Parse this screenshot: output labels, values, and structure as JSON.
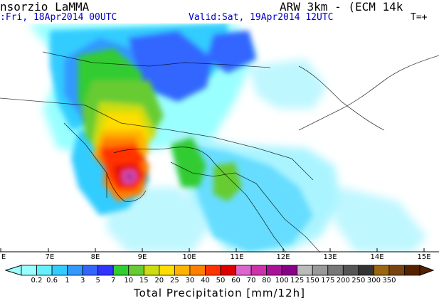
{
  "header": {
    "producer": "nsorzio LaMMA",
    "model": "ARW 3km - (ECM_14k",
    "issue": ":Fri, 18Apr2014 00UTC",
    "valid": "Valid:Sat, 19Apr2014 12UTC",
    "lead_time": "T=+"
  },
  "map": {
    "longitude_labels": [
      "E",
      "7E",
      "8E",
      "9E",
      "10E",
      "11E",
      "12E",
      "13E",
      "14E",
      "15E"
    ]
  },
  "colorbar": {
    "title": "Total Precipitation [mm/12h]",
    "labels": [
      "0.2",
      "0.6",
      "1",
      "3",
      "5",
      "7",
      "10",
      "15",
      "20",
      "25",
      "30",
      "40",
      "50",
      "60",
      "70",
      "80",
      "100",
      "125",
      "150",
      "175",
      "200",
      "250",
      "300",
      "350"
    ],
    "colors": [
      "#99ffff",
      "#66f0ff",
      "#33ccff",
      "#3399ff",
      "#3366ff",
      "#3333ff",
      "#33cc33",
      "#66cc33",
      "#ccdd11",
      "#ffdd00",
      "#ffb300",
      "#ff8000",
      "#ff3300",
      "#dd0000",
      "#dd66cc",
      "#cc33aa",
      "#aa1199",
      "#880088",
      "#bbbbbb",
      "#999999",
      "#777777",
      "#555555",
      "#333333",
      "#996611",
      "#774411",
      "#552200"
    ]
  }
}
